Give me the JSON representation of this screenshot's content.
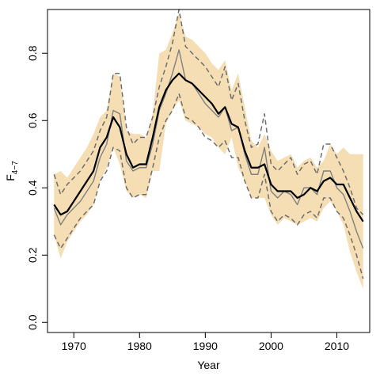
{
  "chart_data": {
    "type": "line",
    "xlabel": "Year",
    "ylabel": {
      "main": "F",
      "sub": "4−7"
    },
    "xlim": [
      1966,
      2015
    ],
    "ylim": [
      -0.03,
      0.93
    ],
    "x_ticks": [
      1970,
      1980,
      1990,
      2000,
      2010
    ],
    "x_tick_labels": [
      "1970",
      "1980",
      "1990",
      "2000",
      "2010"
    ],
    "y_ticks": [
      0.0,
      0.2,
      0.4,
      0.6,
      0.8
    ],
    "y_tick_labels": [
      "0.0",
      "0.2",
      "0.4",
      "0.6",
      "0.8"
    ],
    "grid": false,
    "legend": "none",
    "colors": {
      "band": "#f5deb3",
      "estimate": "#000000",
      "secondary": "#808080",
      "interval": "#6e6e6e"
    },
    "x": [
      1967,
      1968,
      1969,
      1970,
      1971,
      1972,
      1973,
      1974,
      1975,
      1976,
      1977,
      1978,
      1979,
      1980,
      1981,
      1982,
      1983,
      1984,
      1985,
      1986,
      1987,
      1988,
      1989,
      1990,
      1991,
      1992,
      1993,
      1994,
      1995,
      1996,
      1997,
      1998,
      1999,
      2000,
      2001,
      2002,
      2003,
      2004,
      2005,
      2006,
      2007,
      2008,
      2009,
      2010,
      2011,
      2012,
      2013,
      2014
    ],
    "band": {
      "upper": [
        0.44,
        0.45,
        0.43,
        0.46,
        0.49,
        0.52,
        0.56,
        0.61,
        0.63,
        0.74,
        0.73,
        0.57,
        0.56,
        0.56,
        0.55,
        0.62,
        0.8,
        0.81,
        0.86,
        0.92,
        0.85,
        0.84,
        0.82,
        0.8,
        0.77,
        0.75,
        0.78,
        0.69,
        0.74,
        0.64,
        0.54,
        0.52,
        0.56,
        0.51,
        0.48,
        0.49,
        0.5,
        0.46,
        0.48,
        0.49,
        0.46,
        0.48,
        0.53,
        0.5,
        0.52,
        0.5,
        0.5,
        0.5
      ],
      "lower": [
        0.26,
        0.19,
        0.24,
        0.27,
        0.3,
        0.32,
        0.35,
        0.42,
        0.46,
        0.52,
        0.47,
        0.39,
        0.37,
        0.38,
        0.37,
        0.45,
        0.45,
        0.59,
        0.63,
        0.66,
        0.6,
        0.59,
        0.58,
        0.56,
        0.55,
        0.52,
        0.5,
        0.55,
        0.46,
        0.42,
        0.37,
        0.37,
        0.37,
        0.32,
        0.29,
        0.31,
        0.3,
        0.29,
        0.3,
        0.31,
        0.3,
        0.34,
        0.36,
        0.33,
        0.29,
        0.21,
        0.15,
        0.1
      ]
    },
    "series": [
      {
        "values": [
          0.35,
          0.32,
          0.33,
          0.36,
          0.39,
          0.42,
          0.45,
          0.52,
          0.55,
          0.61,
          0.58,
          0.5,
          0.46,
          0.47,
          0.47,
          0.55,
          0.64,
          0.69,
          0.72,
          0.74,
          0.72,
          0.71,
          0.69,
          0.67,
          0.65,
          0.62,
          0.64,
          0.59,
          0.58,
          0.51,
          0.46,
          0.46,
          0.47,
          0.41,
          0.39,
          0.39,
          0.39,
          0.37,
          0.38,
          0.4,
          0.39,
          0.42,
          0.43,
          0.41,
          0.41,
          0.37,
          0.33,
          0.3
        ]
      },
      {
        "values": [
          0.34,
          0.29,
          0.32,
          0.34,
          0.36,
          0.39,
          0.42,
          0.49,
          0.53,
          0.63,
          0.62,
          0.48,
          0.45,
          0.46,
          0.46,
          0.53,
          0.63,
          0.68,
          0.74,
          0.81,
          0.72,
          0.71,
          0.68,
          0.65,
          0.63,
          0.61,
          0.64,
          0.57,
          0.58,
          0.5,
          0.44,
          0.44,
          0.52,
          0.39,
          0.37,
          0.39,
          0.38,
          0.35,
          0.4,
          0.4,
          0.38,
          0.45,
          0.45,
          0.4,
          0.38,
          0.33,
          0.27,
          0.22
        ]
      },
      {
        "values": [
          0.44,
          0.38,
          0.41,
          0.43,
          0.45,
          0.48,
          0.51,
          0.57,
          0.61,
          0.74,
          0.74,
          0.58,
          0.53,
          0.55,
          0.55,
          0.61,
          0.7,
          0.76,
          0.83,
          0.93,
          0.82,
          0.8,
          0.78,
          0.76,
          0.73,
          0.7,
          0.76,
          0.66,
          0.71,
          0.6,
          0.52,
          0.53,
          0.62,
          0.47,
          0.45,
          0.47,
          0.49,
          0.44,
          0.47,
          0.48,
          0.44,
          0.53,
          0.53,
          0.49,
          0.45,
          0.4,
          0.34,
          0.32
        ]
      },
      {
        "values": [
          0.26,
          0.22,
          0.25,
          0.28,
          0.31,
          0.33,
          0.35,
          0.42,
          0.45,
          0.52,
          0.51,
          0.4,
          0.37,
          0.38,
          0.38,
          0.46,
          0.55,
          0.6,
          0.63,
          0.68,
          0.61,
          0.6,
          0.58,
          0.55,
          0.54,
          0.52,
          0.54,
          0.49,
          0.49,
          0.42,
          0.37,
          0.37,
          0.44,
          0.33,
          0.3,
          0.32,
          0.31,
          0.29,
          0.32,
          0.33,
          0.31,
          0.37,
          0.37,
          0.33,
          0.31,
          0.26,
          0.2,
          0.13
        ]
      }
    ]
  }
}
